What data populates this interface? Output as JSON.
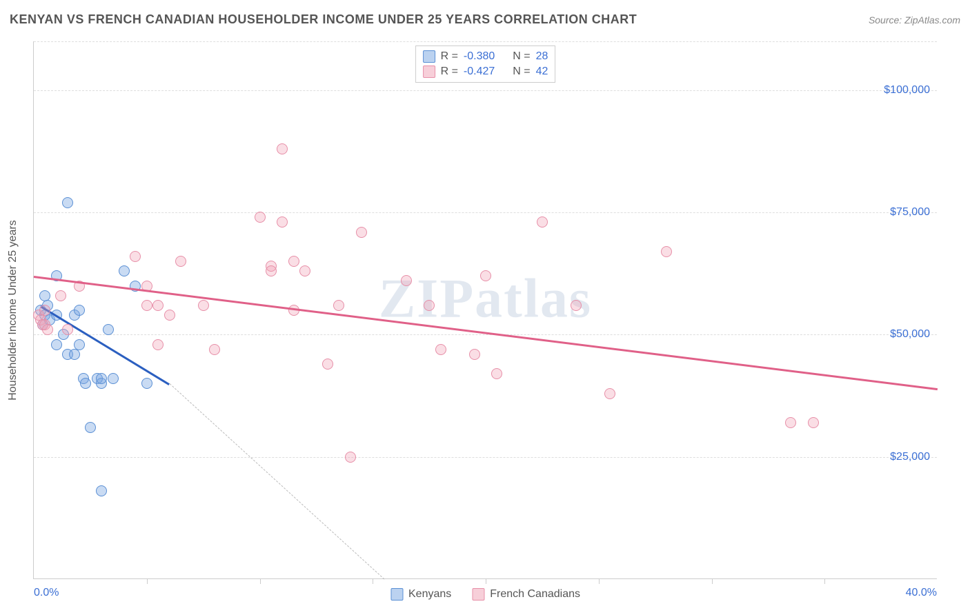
{
  "title": "KENYAN VS FRENCH CANADIAN HOUSEHOLDER INCOME UNDER 25 YEARS CORRELATION CHART",
  "source": "Source: ZipAtlas.com",
  "watermark": "ZIPatlas",
  "yaxis_title": "Householder Income Under 25 years",
  "chart": {
    "type": "scatter",
    "background_color": "#ffffff",
    "grid_color": "#dddddd",
    "xlim": [
      0,
      40
    ],
    "ylim": [
      0,
      110000
    ],
    "xaxis_min_label": "0.0%",
    "xaxis_max_label": "40.0%",
    "yticks": [
      25000,
      50000,
      75000,
      100000
    ],
    "ytick_labels": [
      "$25,000",
      "$50,000",
      "$75,000",
      "$100,000"
    ],
    "xtick_positions": [
      5,
      10,
      15,
      20,
      25,
      30,
      35
    ],
    "marker_size": 16,
    "series": [
      {
        "name": "Kenyans",
        "color_fill": "rgba(120,165,225,0.4)",
        "color_border": "#5a8fd4",
        "R": "-0.380",
        "N": "28",
        "trend": {
          "x1": 0.3,
          "y1": 56000,
          "x2": 6,
          "y2": 40000,
          "color": "#2b5fc0",
          "width": 2.5
        },
        "trend_extrapolate": {
          "x1": 6,
          "y1": 40000,
          "x2": 15.5,
          "y2": 0
        },
        "points": [
          [
            0.3,
            55000
          ],
          [
            0.4,
            52000
          ],
          [
            0.5,
            58000
          ],
          [
            0.5,
            54000
          ],
          [
            0.6,
            56000
          ],
          [
            0.7,
            53000
          ],
          [
            1.0,
            62000
          ],
          [
            1.0,
            54000
          ],
          [
            1.0,
            48000
          ],
          [
            1.5,
            77000
          ],
          [
            1.3,
            50000
          ],
          [
            1.5,
            46000
          ],
          [
            1.8,
            54000
          ],
          [
            2.0,
            55000
          ],
          [
            2.0,
            48000
          ],
          [
            2.2,
            41000
          ],
          [
            2.3,
            40000
          ],
          [
            2.5,
            31000
          ],
          [
            2.8,
            41000
          ],
          [
            3.0,
            40000
          ],
          [
            3.0,
            41000
          ],
          [
            3.5,
            41000
          ],
          [
            3.3,
            51000
          ],
          [
            4.0,
            63000
          ],
          [
            3.0,
            18000
          ],
          [
            5.0,
            40000
          ],
          [
            4.5,
            60000
          ],
          [
            1.8,
            46000
          ]
        ]
      },
      {
        "name": "French Canadians",
        "color_fill": "rgba(240,160,180,0.35)",
        "color_border": "#e78fa8",
        "R": "-0.427",
        "N": "42",
        "trend": {
          "x1": 0,
          "y1": 62000,
          "x2": 40,
          "y2": 39000,
          "color": "#e06088",
          "width": 2.5
        },
        "points": [
          [
            0.2,
            54000
          ],
          [
            0.3,
            53000
          ],
          [
            0.4,
            52000
          ],
          [
            0.5,
            55000
          ],
          [
            0.5,
            52000
          ],
          [
            0.6,
            51000
          ],
          [
            1.2,
            58000
          ],
          [
            1.5,
            51000
          ],
          [
            2.0,
            60000
          ],
          [
            4.5,
            66000
          ],
          [
            5.0,
            60000
          ],
          [
            5.0,
            56000
          ],
          [
            5.5,
            56000
          ],
          [
            5.5,
            48000
          ],
          [
            6.0,
            54000
          ],
          [
            6.5,
            65000
          ],
          [
            7.5,
            56000
          ],
          [
            8.0,
            47000
          ],
          [
            10.0,
            74000
          ],
          [
            10.5,
            64000
          ],
          [
            10.5,
            63000
          ],
          [
            11.0,
            73000
          ],
          [
            11.5,
            65000
          ],
          [
            11.0,
            88000
          ],
          [
            11.5,
            55000
          ],
          [
            12.0,
            63000
          ],
          [
            13.0,
            44000
          ],
          [
            13.5,
            56000
          ],
          [
            14.5,
            71000
          ],
          [
            14.0,
            25000
          ],
          [
            16.5,
            61000
          ],
          [
            17.5,
            56000
          ],
          [
            18.0,
            47000
          ],
          [
            19.5,
            46000
          ],
          [
            20.0,
            62000
          ],
          [
            20.5,
            42000
          ],
          [
            22.5,
            73000
          ],
          [
            24.0,
            56000
          ],
          [
            25.5,
            38000
          ],
          [
            28.0,
            67000
          ],
          [
            33.5,
            32000
          ],
          [
            34.5,
            32000
          ]
        ]
      }
    ]
  },
  "legend": {
    "series1_label": "Kenyans",
    "series2_label": "French Canadians"
  },
  "stats_labels": {
    "R": "R =",
    "N": "N ="
  }
}
